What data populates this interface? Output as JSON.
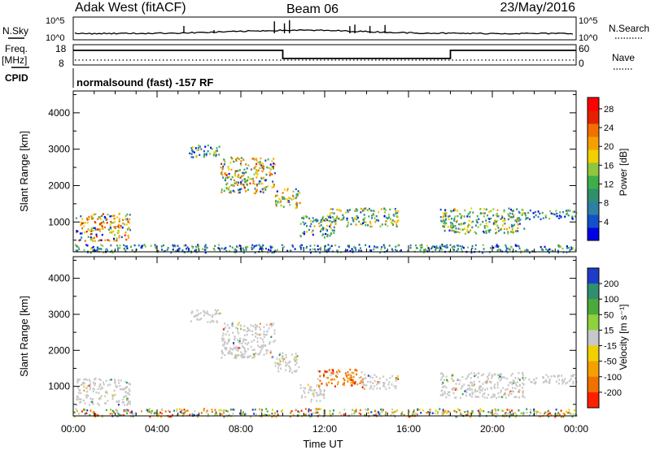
{
  "header": {
    "station": "Adak West (fitACF)",
    "beam": "Beam 06",
    "date": "23/May/2016"
  },
  "strip": {
    "nsky_label": "N.Sky",
    "nsky_ticks": [
      "10^5",
      "10^0"
    ],
    "nsearch_label": "N.Search",
    "nsearch_ticks": [
      "10^5",
      "10^0"
    ],
    "freq_label": "Freq.",
    "freq_unit": "[MHz]",
    "freq_ticks": [
      "18",
      "8"
    ],
    "nave_label": "Nave",
    "nave_ticks": [
      "60",
      "0"
    ],
    "cpid_label": "CPID",
    "cpid_text": "normalsound (fast) -157 RF",
    "freq_steps": [
      {
        "t0": 0,
        "t1": 10,
        "level": "high"
      },
      {
        "t0": 10,
        "t1": 18,
        "level": "low"
      },
      {
        "t0": 18,
        "t1": 24,
        "level": "high"
      }
    ]
  },
  "chart_data": [
    {
      "type": "heatmap",
      "quantity": "Power",
      "ylabel": "Slant Range [km]",
      "xlabel": "Time UT",
      "x_ticks": [
        "00:00",
        "04:00",
        "08:00",
        "12:00",
        "16:00",
        "20:00",
        "00:00"
      ],
      "xlim": [
        0,
        24
      ],
      "y_ticks": [
        1000,
        2000,
        3000,
        4000
      ],
      "ylim": [
        180,
        4600
      ],
      "colorbar": {
        "label": "Power [dB]",
        "ticks": [
          "4",
          "8",
          "12",
          "16",
          "20",
          "24",
          "28"
        ],
        "colors": [
          "#0000e6",
          "#1450c8",
          "#2f7ea6",
          "#2f8f6e",
          "#3fae48",
          "#8ec63f",
          "#f0d000",
          "#f5a000",
          "#f07000",
          "#e62000",
          "#ff0000"
        ]
      },
      "regions": [
        {
          "t0": 0.1,
          "t1": 2.7,
          "r0": 500,
          "r1": 1250,
          "level": 0.65
        },
        {
          "t0": 5.5,
          "t1": 7.0,
          "r0": 2800,
          "r1": 3150,
          "level": 0.35
        },
        {
          "t0": 7.0,
          "t1": 9.6,
          "r0": 1800,
          "r1": 2800,
          "level": 0.6
        },
        {
          "t0": 9.6,
          "t1": 10.8,
          "r0": 1400,
          "r1": 1950,
          "level": 0.55
        },
        {
          "t0": 10.8,
          "t1": 12.5,
          "r0": 600,
          "r1": 1200,
          "level": 0.4
        },
        {
          "t0": 12.2,
          "t1": 15.5,
          "r0": 900,
          "r1": 1400,
          "level": 0.45
        },
        {
          "t0": 17.5,
          "t1": 21.5,
          "r0": 700,
          "r1": 1400,
          "level": 0.45
        },
        {
          "t0": 21.5,
          "t1": 24.0,
          "r0": 1100,
          "r1": 1350,
          "level": 0.3
        },
        {
          "t0": 0.0,
          "t1": 24.0,
          "r0": 180,
          "r1": 400,
          "level": 0.3
        }
      ]
    },
    {
      "type": "heatmap",
      "quantity": "Velocity",
      "ylabel": "Slant Range [km]",
      "xlabel": "Time UT",
      "x_ticks": [
        "00:00",
        "04:00",
        "08:00",
        "12:00",
        "16:00",
        "20:00",
        "00:00"
      ],
      "xlim": [
        0,
        24
      ],
      "y_ticks": [
        1000,
        2000,
        3000,
        4000
      ],
      "ylim": [
        180,
        4600
      ],
      "colorbar": {
        "label": "Velocity [m s⁻¹]",
        "ticks": [
          "200",
          "100",
          "50",
          "15",
          "-15",
          "-50",
          "-100",
          "-200"
        ],
        "colors": [
          "#1e3cc8",
          "#2f8f6e",
          "#4caa3c",
          "#8ed23c",
          "#c8c8c8",
          "#f0d000",
          "#f5a000",
          "#f07000",
          "#ff2000"
        ]
      },
      "regions": [
        {
          "t0": 0.1,
          "t1": 2.7,
          "r0": 500,
          "r1": 1250,
          "level": "gray"
        },
        {
          "t0": 5.5,
          "t1": 7.0,
          "r0": 2800,
          "r1": 3150,
          "level": "gray"
        },
        {
          "t0": 7.0,
          "t1": 9.6,
          "r0": 1800,
          "r1": 2800,
          "level": "gray"
        },
        {
          "t0": 9.6,
          "t1": 10.8,
          "r0": 1400,
          "r1": 1950,
          "level": "gray"
        },
        {
          "t0": 10.8,
          "t1": 12.0,
          "r0": 600,
          "r1": 1100,
          "level": "gray"
        },
        {
          "t0": 11.6,
          "t1": 13.8,
          "r0": 1000,
          "r1": 1500,
          "level": "orange"
        },
        {
          "t0": 13.8,
          "t1": 15.5,
          "r0": 950,
          "r1": 1350,
          "level": "gray"
        },
        {
          "t0": 17.5,
          "t1": 21.5,
          "r0": 700,
          "r1": 1400,
          "level": "gray"
        },
        {
          "t0": 21.5,
          "t1": 24.0,
          "r0": 1100,
          "r1": 1350,
          "level": "gray"
        },
        {
          "t0": 0.0,
          "t1": 24.0,
          "r0": 180,
          "r1": 400,
          "level": "mixed"
        }
      ]
    }
  ]
}
